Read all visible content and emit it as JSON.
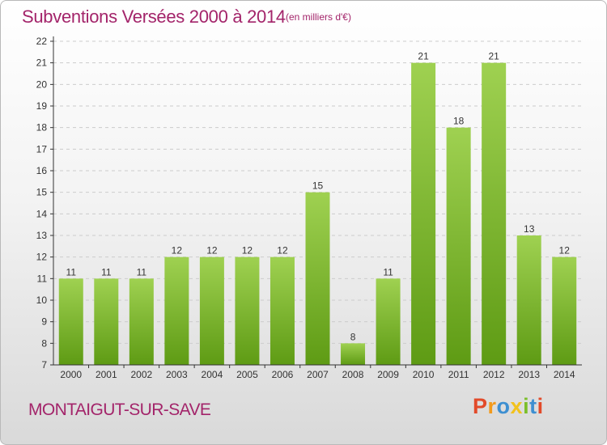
{
  "title": "Subventions Versées 2000 à 2014",
  "unit_note": "(en milliers d'€)",
  "place_name": "MONTAIGUT-SUR-SAVE",
  "logo": {
    "letters": [
      "P",
      "r",
      "o",
      "x",
      "i",
      "t",
      "i"
    ]
  },
  "colors": {
    "title": "#a3246a",
    "bar_top": "#9fd151",
    "bar_bottom": "#5e9b14",
    "grid": "#cccccc"
  },
  "chart_data": {
    "type": "bar",
    "title": "Subventions Versées 2000 à 2014",
    "ylabel": "",
    "xlabel": "",
    "categories": [
      "2000",
      "2001",
      "2002",
      "2003",
      "2004",
      "2005",
      "2006",
      "2007",
      "2008",
      "2009",
      "2010",
      "2011",
      "2012",
      "2013",
      "2014"
    ],
    "values": [
      11,
      11,
      11,
      12,
      12,
      12,
      12,
      15,
      8,
      11,
      21,
      18,
      21,
      13,
      12
    ],
    "yticks": [
      "7",
      "8",
      "9",
      "10",
      "11",
      "12",
      "13",
      "14",
      "15",
      "16",
      "17",
      "18",
      "19",
      "20",
      "21",
      "22"
    ],
    "ylim": [
      7,
      22
    ],
    "grid": true
  }
}
